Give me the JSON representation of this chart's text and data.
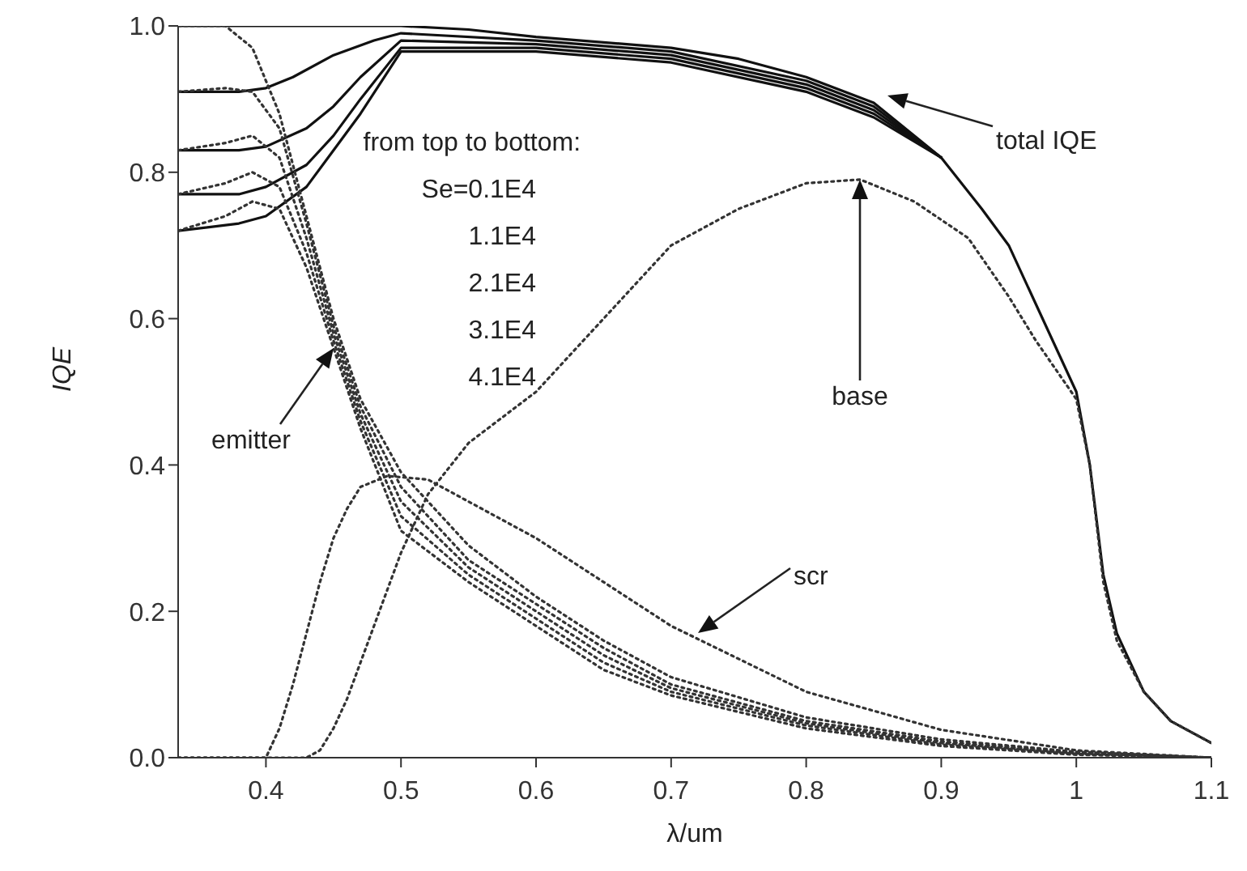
{
  "chart_data": {
    "type": "line",
    "xlabel": "λ/um",
    "ylabel": "IQE",
    "xlim": [
      0.335,
      1.1
    ],
    "xticks": [
      0.4,
      0.5,
      0.6,
      0.7,
      0.8,
      0.9,
      1,
      1.1
    ],
    "ylim": [
      0,
      1
    ],
    "yticks": [
      {
        "value": 0,
        "label": "0.0"
      },
      {
        "value": 0.2,
        "label": "0.2"
      },
      {
        "value": 0.4,
        "label": "0.4"
      },
      {
        "value": 0.6,
        "label": "0.6"
      },
      {
        "value": 0.8,
        "label": "0.8"
      },
      {
        "value": 1,
        "label": "1.0"
      }
    ],
    "grid": false,
    "marker": "none",
    "series": [
      {
        "color": "#111111",
        "line_style": "solid",
        "x": [
          0.335,
          0.45,
          0.5,
          0.55,
          0.6,
          0.7,
          0.75,
          0.8,
          0.85,
          0.9,
          0.93,
          0.95,
          0.97,
          1.0,
          1.01,
          1.02,
          1.03,
          1.05,
          1.07,
          1.09,
          1.1
        ],
        "values": [
          1.0,
          1.0,
          1.0,
          0.995,
          0.985,
          0.97,
          0.955,
          0.93,
          0.895,
          0.82,
          0.75,
          0.7,
          0.62,
          0.5,
          0.4,
          0.25,
          0.17,
          0.09,
          0.05,
          0.03,
          0.02
        ]
      },
      {
        "color": "#111111",
        "line_style": "solid",
        "x": [
          0.335,
          0.38,
          0.4,
          0.42,
          0.45,
          0.48,
          0.5,
          0.6,
          0.7,
          0.8,
          0.85,
          0.9
        ],
        "values": [
          0.91,
          0.91,
          0.915,
          0.93,
          0.96,
          0.98,
          0.99,
          0.98,
          0.965,
          0.925,
          0.89,
          0.82
        ]
      },
      {
        "color": "#111111",
        "line_style": "solid",
        "x": [
          0.335,
          0.38,
          0.4,
          0.43,
          0.45,
          0.47,
          0.5,
          0.6,
          0.7,
          0.8,
          0.85,
          0.9
        ],
        "values": [
          0.83,
          0.83,
          0.835,
          0.86,
          0.89,
          0.93,
          0.98,
          0.975,
          0.96,
          0.92,
          0.885,
          0.82
        ]
      },
      {
        "color": "#111111",
        "line_style": "solid",
        "x": [
          0.335,
          0.38,
          0.4,
          0.43,
          0.45,
          0.47,
          0.5,
          0.6,
          0.7,
          0.8,
          0.85,
          0.9
        ],
        "values": [
          0.77,
          0.77,
          0.78,
          0.81,
          0.85,
          0.9,
          0.97,
          0.97,
          0.955,
          0.915,
          0.88,
          0.82
        ]
      },
      {
        "color": "#111111",
        "line_style": "solid",
        "x": [
          0.335,
          0.38,
          0.4,
          0.43,
          0.45,
          0.47,
          0.5,
          0.6,
          0.7,
          0.8,
          0.85,
          0.9
        ],
        "values": [
          0.72,
          0.73,
          0.74,
          0.78,
          0.83,
          0.88,
          0.965,
          0.965,
          0.95,
          0.91,
          0.875,
          0.82
        ]
      },
      {
        "color": "#333333",
        "line_style": "dotted",
        "x": [
          0.335,
          0.37,
          0.39,
          0.41,
          0.43,
          0.45,
          0.47,
          0.5,
          0.55,
          0.6,
          0.65,
          0.7,
          0.8,
          0.9,
          1.0,
          1.1
        ],
        "values": [
          1.0,
          1.0,
          0.97,
          0.88,
          0.74,
          0.6,
          0.49,
          0.39,
          0.29,
          0.22,
          0.16,
          0.11,
          0.055,
          0.025,
          0.008,
          0
        ]
      },
      {
        "color": "#333333",
        "line_style": "dotted",
        "x": [
          0.335,
          0.37,
          0.39,
          0.41,
          0.43,
          0.45,
          0.47,
          0.5,
          0.55,
          0.6,
          0.65,
          0.7,
          0.8,
          0.9,
          1.0,
          1.1
        ],
        "values": [
          0.91,
          0.915,
          0.91,
          0.86,
          0.73,
          0.59,
          0.48,
          0.37,
          0.27,
          0.21,
          0.15,
          0.1,
          0.05,
          0.022,
          0.007,
          0
        ]
      },
      {
        "color": "#333333",
        "line_style": "dotted",
        "x": [
          0.335,
          0.37,
          0.39,
          0.41,
          0.43,
          0.45,
          0.47,
          0.5,
          0.55,
          0.6,
          0.65,
          0.7,
          0.8,
          0.9,
          1.0,
          1.1
        ],
        "values": [
          0.83,
          0.84,
          0.85,
          0.82,
          0.71,
          0.58,
          0.47,
          0.35,
          0.26,
          0.2,
          0.14,
          0.095,
          0.047,
          0.02,
          0.006,
          0
        ]
      },
      {
        "color": "#333333",
        "line_style": "dotted",
        "x": [
          0.335,
          0.37,
          0.39,
          0.41,
          0.43,
          0.45,
          0.47,
          0.5,
          0.55,
          0.6,
          0.65,
          0.7,
          0.8,
          0.9,
          1.0,
          1.1
        ],
        "values": [
          0.77,
          0.785,
          0.8,
          0.78,
          0.69,
          0.57,
          0.46,
          0.33,
          0.25,
          0.19,
          0.13,
          0.09,
          0.044,
          0.018,
          0.005,
          0
        ]
      },
      {
        "color": "#333333",
        "line_style": "dotted",
        "x": [
          0.335,
          0.37,
          0.39,
          0.41,
          0.43,
          0.45,
          0.47,
          0.5,
          0.55,
          0.6,
          0.65,
          0.7,
          0.8,
          0.9,
          1.0,
          1.1
        ],
        "values": [
          0.72,
          0.74,
          0.76,
          0.75,
          0.67,
          0.56,
          0.45,
          0.31,
          0.24,
          0.18,
          0.12,
          0.085,
          0.04,
          0.016,
          0.004,
          0
        ]
      },
      {
        "color": "#333333",
        "line_style": "dotted",
        "x": [
          0.335,
          0.43,
          0.44,
          0.45,
          0.46,
          0.47,
          0.48,
          0.5,
          0.52,
          0.55,
          0.6,
          0.65,
          0.7,
          0.75,
          0.8,
          0.84,
          0.88,
          0.92,
          0.95,
          0.97,
          1.0,
          1.01,
          1.02,
          1.03,
          1.05,
          1.07,
          1.09,
          1.1
        ],
        "values": [
          0,
          0,
          0.01,
          0.04,
          0.08,
          0.13,
          0.18,
          0.28,
          0.36,
          0.43,
          0.5,
          0.6,
          0.7,
          0.75,
          0.785,
          0.79,
          0.76,
          0.71,
          0.63,
          0.57,
          0.49,
          0.4,
          0.24,
          0.16,
          0.09,
          0.05,
          0.03,
          0.02
        ]
      },
      {
        "color": "#333333",
        "line_style": "dotted",
        "x": [
          0.335,
          0.4,
          0.41,
          0.42,
          0.43,
          0.44,
          0.45,
          0.46,
          0.47,
          0.49,
          0.52,
          0.6,
          0.7,
          0.8,
          0.9,
          1.0,
          1.1
        ],
        "values": [
          0,
          0,
          0.04,
          0.1,
          0.17,
          0.24,
          0.3,
          0.34,
          0.37,
          0.385,
          0.38,
          0.3,
          0.18,
          0.09,
          0.038,
          0.01,
          0
        ]
      }
    ],
    "annotations": [
      "total IQE",
      "base",
      "scr",
      "emitter",
      "from top to bottom:",
      "Se=0.1E4",
      "1.1E4",
      "2.1E4",
      "3.1E4",
      "4.1E4"
    ]
  }
}
